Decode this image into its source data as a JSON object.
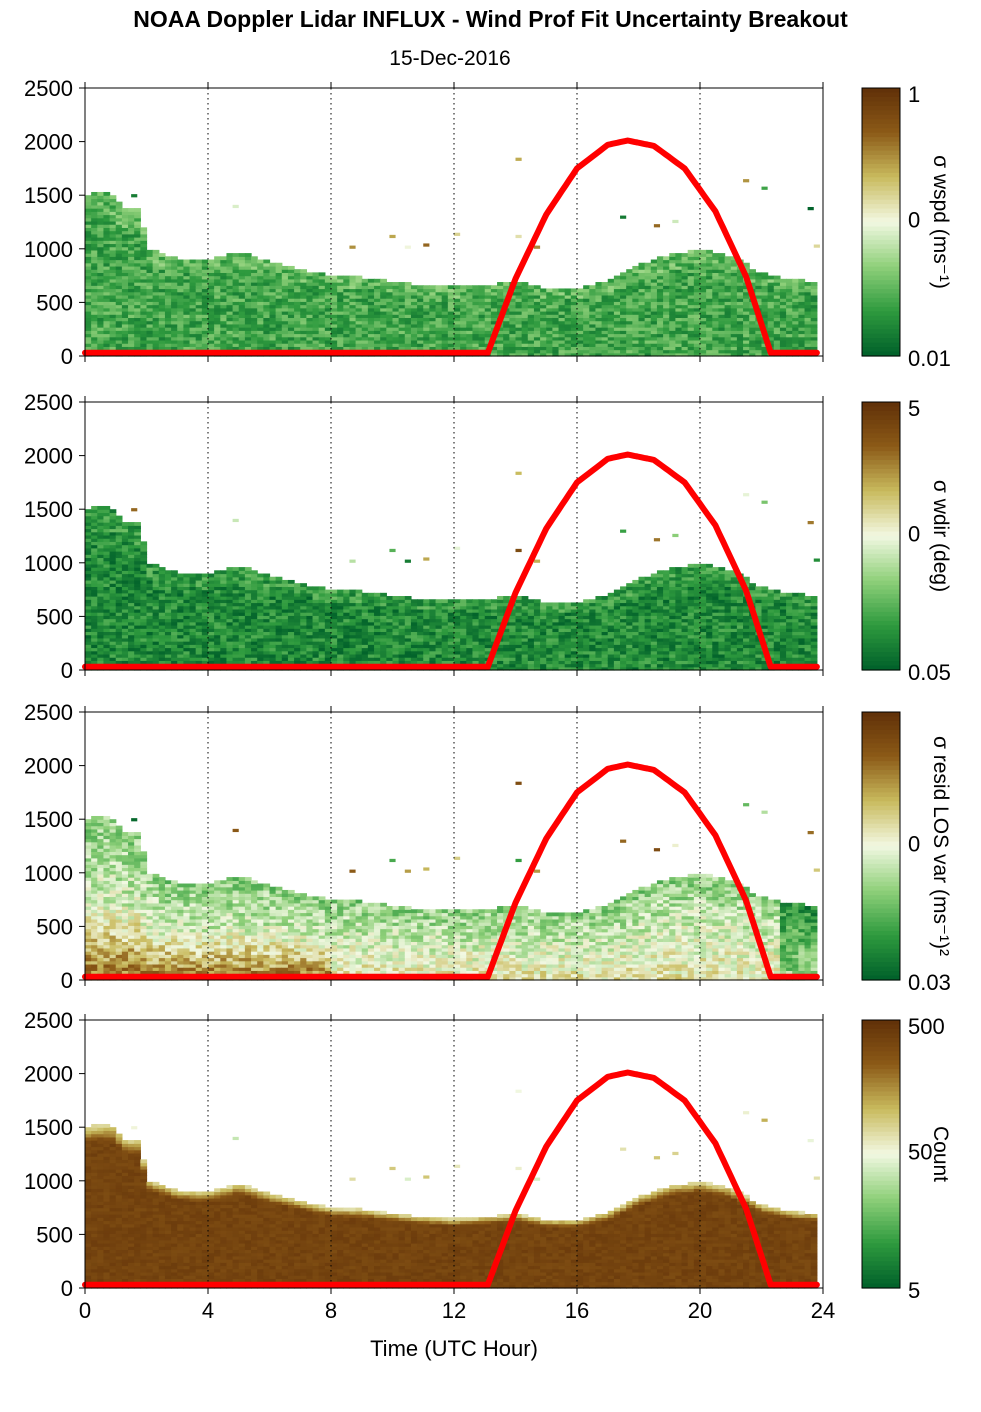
{
  "title": "NOAA Doppler Lidar INFLUX - Wind Prof Fit Uncertainty Breakout",
  "subtitle": "15-Dec-2016",
  "chart_data": {
    "type": "heatmap",
    "xlabel": "Time (UTC Hour)",
    "xlim": [
      0,
      24
    ],
    "ylim": [
      0,
      2500
    ],
    "x_ticks": [
      0,
      4,
      8,
      12,
      16,
      20,
      24
    ],
    "y_ticks": [
      0,
      500,
      1000,
      1500,
      2000,
      2500
    ],
    "vertical_gridlines_x": [
      4,
      8,
      12,
      16,
      20,
      24
    ],
    "colormap": [
      "#00602a",
      "#2e9a3e",
      "#8fd07a",
      "#f2f8e2",
      "#c9bb5e",
      "#8c5a17",
      "#603008"
    ],
    "data_extent_hours": [
      0,
      23.8
    ],
    "panels": [
      {
        "colorbar_label": "σ wspd (ms⁻¹)",
        "colorbar_ticks": [
          "1",
          "0",
          "0.01"
        ],
        "scale": "log",
        "color_range": [
          0.01,
          1
        ],
        "bias": 0.2,
        "low_bias": 0.0
      },
      {
        "colorbar_label": "σ wdir (deg)",
        "colorbar_ticks": [
          "5",
          "0",
          "0.05"
        ],
        "scale": "log",
        "color_range": [
          0.05,
          5
        ],
        "bias": 0.12,
        "low_bias": 0.0
      },
      {
        "colorbar_label": "σ resid LOS var (ms⁻¹)²",
        "colorbar_ticks": [
          "",
          "0",
          "0.03"
        ],
        "scale": "log",
        "color_range": [
          0.03,
          1
        ],
        "bias": 0.45,
        "low_bias": 0.35
      },
      {
        "colorbar_label": "Count",
        "colorbar_ticks": [
          "500",
          "50",
          "5"
        ],
        "scale": "log",
        "color_range": [
          1,
          500
        ],
        "bias": 0.92,
        "low_bias": 0.0
      }
    ],
    "boundary_layer_top": {
      "hours": [
        0,
        0.4,
        0.9,
        1.3,
        1.8,
        2.0,
        3.0,
        4.0,
        5.0,
        6.0,
        7.0,
        8.0,
        9.0,
        10.0,
        11.0,
        12.0,
        13.0,
        14.0,
        15.0,
        16.0,
        17.0,
        18.0,
        19.0,
        20.0,
        21.0,
        22.0,
        23.0,
        23.8
      ],
      "height_m": [
        1480,
        1510,
        1500,
        1380,
        1360,
        1000,
        900,
        880,
        960,
        870,
        800,
        730,
        720,
        680,
        650,
        630,
        650,
        680,
        620,
        620,
        690,
        840,
        940,
        980,
        920,
        760,
        700,
        680
      ]
    },
    "scattered_bins": [
      {
        "hour": 1.5,
        "height_m": 1480
      },
      {
        "hour": 4.8,
        "height_m": 1380
      },
      {
        "hour": 8.6,
        "height_m": 1000
      },
      {
        "hour": 9.9,
        "height_m": 1100
      },
      {
        "hour": 10.4,
        "height_m": 1000
      },
      {
        "hour": 11.0,
        "height_m": 1020
      },
      {
        "hour": 12.0,
        "height_m": 1120
      },
      {
        "hour": 14.0,
        "height_m": 1820
      },
      {
        "hour": 14.0,
        "height_m": 1100
      },
      {
        "hour": 14.6,
        "height_m": 1000
      },
      {
        "hour": 17.4,
        "height_m": 1280
      },
      {
        "hour": 18.5,
        "height_m": 1200
      },
      {
        "hour": 19.1,
        "height_m": 1240
      },
      {
        "hour": 21.4,
        "height_m": 1620
      },
      {
        "hour": 22.0,
        "height_m": 1550
      },
      {
        "hour": 23.5,
        "height_m": 1360
      },
      {
        "hour": 23.7,
        "height_m": 1010
      }
    ],
    "series": [
      {
        "name": "",
        "color": "#ff0000",
        "type": "line",
        "description_hours": [
          0,
          13.1,
          14,
          15,
          16,
          17,
          17.65,
          18.5,
          19.5,
          20.5,
          21.5,
          22.3,
          24
        ],
        "values_m": [
          30,
          30,
          720,
          1320,
          1750,
          1970,
          2010,
          1960,
          1750,
          1350,
          740,
          30,
          30
        ]
      }
    ]
  }
}
